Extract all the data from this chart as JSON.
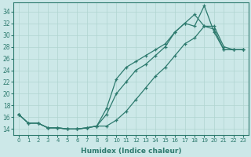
{
  "xlabel": "Humidex (Indice chaleur)",
  "bg_color": "#cce8e8",
  "line_color": "#2d7a6e",
  "grid_color": "#b0d4d0",
  "xlim": [
    -0.5,
    23.5
  ],
  "ylim": [
    13.0,
    35.5
  ],
  "xticks": [
    0,
    1,
    2,
    3,
    4,
    5,
    6,
    7,
    8,
    9,
    10,
    11,
    12,
    13,
    14,
    15,
    16,
    17,
    18,
    19,
    20,
    21,
    22,
    23
  ],
  "yticks": [
    14,
    16,
    18,
    20,
    22,
    24,
    26,
    28,
    30,
    32,
    34
  ],
  "line1_x": [
    0,
    1,
    2,
    3,
    4,
    5,
    6,
    7,
    8,
    9,
    10,
    11,
    12,
    13,
    14,
    15,
    16,
    17,
    18,
    19,
    20,
    21,
    22,
    23
  ],
  "line1_y": [
    16.5,
    15.0,
    15.0,
    14.2,
    14.2,
    14.0,
    14.0,
    14.2,
    14.5,
    17.5,
    22.5,
    24.5,
    25.5,
    26.5,
    27.5,
    28.5,
    30.5,
    32.0,
    31.5,
    35.0,
    30.5,
    27.5,
    27.5,
    27.5
  ],
  "line2_x": [
    0,
    1,
    2,
    3,
    4,
    5,
    6,
    7,
    8,
    9,
    10,
    11,
    12,
    13,
    14,
    15,
    16,
    17,
    18,
    19,
    20,
    21,
    22,
    23
  ],
  "line2_y": [
    16.5,
    15.0,
    15.0,
    14.2,
    14.2,
    14.0,
    14.0,
    14.2,
    14.5,
    16.5,
    20.0,
    22.0,
    24.0,
    25.0,
    26.5,
    28.0,
    30.5,
    32.0,
    33.5,
    31.5,
    31.0,
    27.5,
    27.5,
    27.5
  ],
  "line3_x": [
    0,
    1,
    2,
    3,
    4,
    5,
    6,
    7,
    8,
    9,
    10,
    11,
    12,
    13,
    14,
    15,
    16,
    17,
    18,
    19,
    20,
    21,
    22,
    23
  ],
  "line3_y": [
    16.5,
    15.0,
    15.0,
    14.2,
    14.2,
    14.0,
    14.0,
    14.2,
    14.5,
    14.5,
    15.5,
    17.0,
    19.0,
    21.0,
    23.0,
    24.5,
    26.5,
    28.5,
    29.5,
    31.5,
    31.5,
    28.0,
    27.5,
    27.5
  ]
}
